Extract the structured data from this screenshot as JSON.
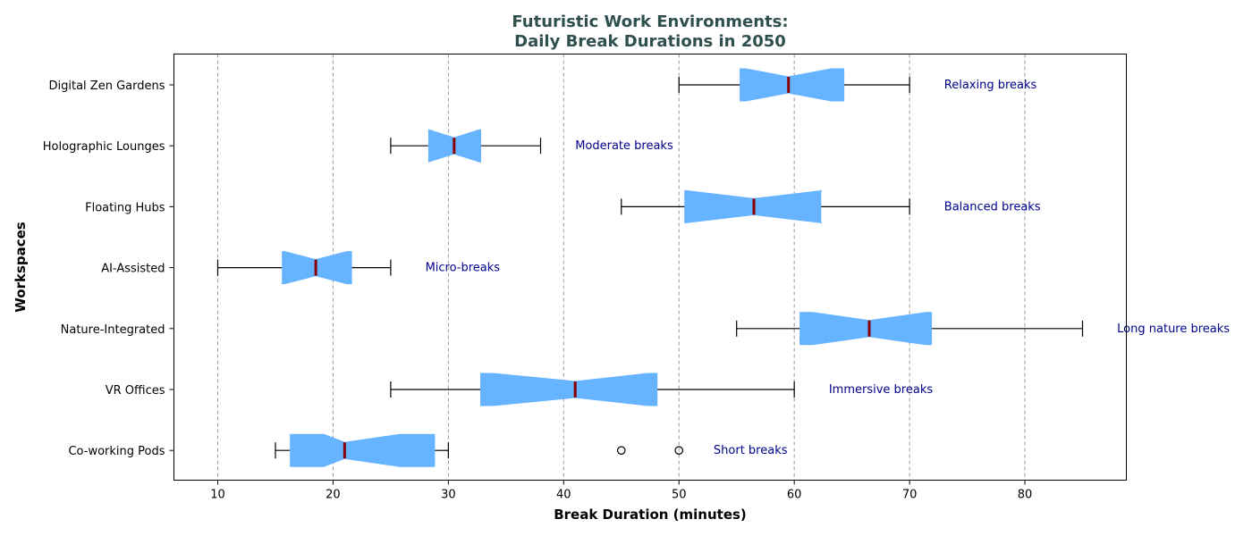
{
  "chart_data": {
    "type": "boxplot",
    "orientation": "horizontal",
    "notched": true,
    "title_lines": [
      "Futuristic Work Environments:",
      "Daily Break Durations in 2050"
    ],
    "xlabel": "Break Duration (minutes)",
    "ylabel": "Workspaces",
    "xlim": [
      6.2,
      88.8
    ],
    "xticks": [
      10,
      20,
      30,
      40,
      50,
      60,
      70,
      80
    ],
    "grid": "x, dashed",
    "colors": {
      "box_fill": "#66b3ff",
      "median": "#8b0000",
      "whisker": "#000000",
      "grid": "#999999",
      "annotation": "#00008b",
      "title": "#2f4f4f"
    },
    "categories": [
      "Co-working Pods",
      "VR Offices",
      "Nature-Integrated",
      "AI-Assisted",
      "Floating Hubs",
      "Holographic Lounges",
      "Digital Zen Gardens"
    ],
    "boxes": [
      {
        "label": "Co-working Pods",
        "whislo": 15,
        "q1": 16.3,
        "med": 21,
        "q3": 28.8,
        "whishi": 30,
        "notch_lo": 19.2,
        "notch_hi": 25.8,
        "fliers": [
          45,
          50
        ],
        "annotation": "Short breaks",
        "annotation_x": 53
      },
      {
        "label": "VR Offices",
        "whislo": 25,
        "q1": 32.8,
        "med": 41,
        "q3": 48.1,
        "whishi": 60,
        "notch_lo": 33.9,
        "notch_hi": 47.3,
        "fliers": [],
        "annotation": "Immersive breaks",
        "annotation_x": 63
      },
      {
        "label": "Nature-Integrated",
        "whislo": 55,
        "q1": 60.5,
        "med": 66.5,
        "q3": 71.9,
        "whishi": 85,
        "notch_lo": 61.6,
        "notch_hi": 71.4,
        "fliers": [],
        "annotation": "Long nature breaks",
        "annotation_x": 88
      },
      {
        "label": "AI-Assisted",
        "whislo": 10,
        "q1": 15.6,
        "med": 18.5,
        "q3": 21.6,
        "whishi": 25,
        "notch_lo": 15.8,
        "notch_hi": 21.2,
        "fliers": [],
        "annotation": "Micro-breaks",
        "annotation_x": 28
      },
      {
        "label": "Floating Hubs",
        "whislo": 45,
        "q1": 50.5,
        "med": 56.5,
        "q3": 62.3,
        "whishi": 70,
        "notch_lo": 50.6,
        "notch_hi": 62.4,
        "fliers": [],
        "annotation": "Balanced breaks",
        "annotation_x": 73
      },
      {
        "label": "Holographic Lounges",
        "whislo": 25,
        "q1": 28.3,
        "med": 30.5,
        "q3": 32.8,
        "whishi": 38,
        "notch_lo": 28.3,
        "notch_hi": 32.7,
        "fliers": [],
        "annotation": "Moderate breaks",
        "annotation_x": 41
      },
      {
        "label": "Digital Zen Gardens",
        "whislo": 50,
        "q1": 55.3,
        "med": 59.5,
        "q3": 64.3,
        "whishi": 70,
        "notch_lo": 55.8,
        "notch_hi": 63.2,
        "fliers": [],
        "annotation": "Relaxing breaks",
        "annotation_x": 73
      }
    ]
  }
}
